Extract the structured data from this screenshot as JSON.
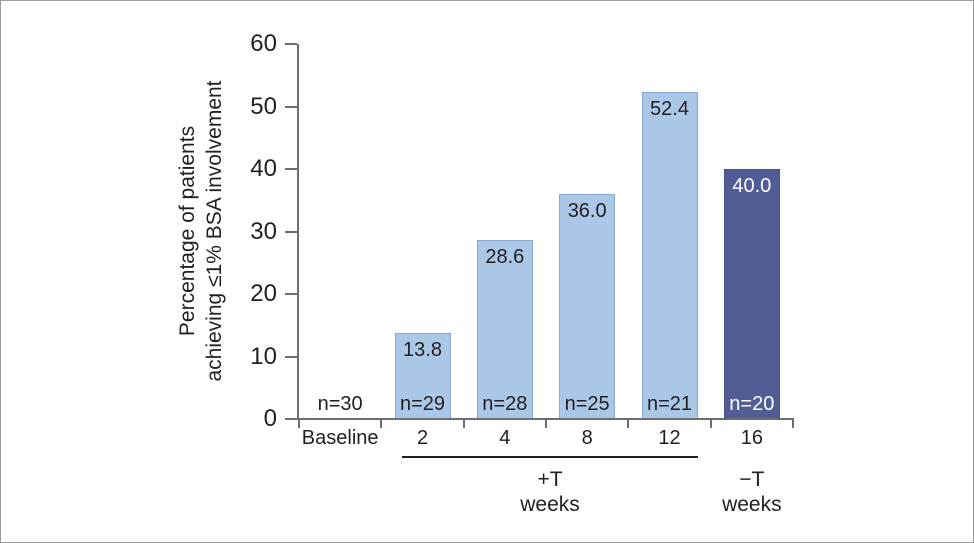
{
  "figure": {
    "background": "#ffffff",
    "border_color": "#9b9b9b"
  },
  "chart_data": {
    "type": "bar",
    "title": "",
    "ylabel_lines": [
      "Percentage of patients",
      "achieving ≤1% BSA involvement"
    ],
    "xlabel": "",
    "ylim": [
      0,
      60
    ],
    "yticks": [
      "0",
      "10",
      "20",
      "30",
      "40",
      "50",
      "60"
    ],
    "categories": [
      "Baseline",
      "2",
      "4",
      "8",
      "12",
      "16"
    ],
    "bars": [
      {
        "category": "Baseline",
        "value": 0,
        "value_label": "",
        "n_label": "n=30",
        "fill": "none",
        "border": "none",
        "label_color": "#231f20"
      },
      {
        "category": "2",
        "value": 13.8,
        "value_label": "13.8",
        "n_label": "n=29",
        "fill": "#abc7e8",
        "border": "#8aa7d1",
        "label_color": "#231f20"
      },
      {
        "category": "4",
        "value": 28.6,
        "value_label": "28.6",
        "n_label": "n=28",
        "fill": "#abc7e8",
        "border": "#8aa7d1",
        "label_color": "#231f20"
      },
      {
        "category": "8",
        "value": 36.0,
        "value_label": "36.0",
        "n_label": "n=25",
        "fill": "#abc7e8",
        "border": "#8aa7d1",
        "label_color": "#231f20"
      },
      {
        "category": "12",
        "value": 52.4,
        "value_label": "52.4",
        "n_label": "n=21",
        "fill": "#abc7e8",
        "border": "#8aa7d1",
        "label_color": "#231f20"
      },
      {
        "category": "16",
        "value": 40.0,
        "value_label": "40.0",
        "n_label": "n=20",
        "fill": "#515d94",
        "border": "#47528a",
        "label_color": "#ffffff"
      }
    ],
    "groups": [
      {
        "label": "+T",
        "sublabel": "weeks",
        "start_category": "2",
        "end_category": "12",
        "underline": true
      },
      {
        "label": "−T",
        "sublabel": "weeks",
        "start_category": "16",
        "end_category": "16",
        "underline": false
      }
    ],
    "axis_color": "#6d6e71",
    "text_color": "#231f20",
    "grid": false,
    "legend": false
  }
}
